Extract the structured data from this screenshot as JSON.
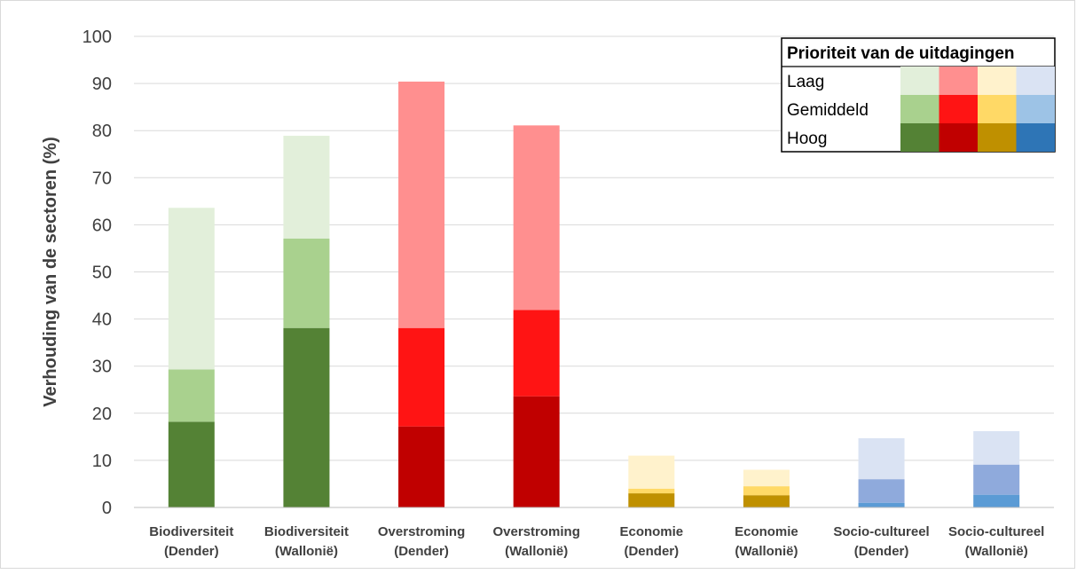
{
  "chart_data": {
    "type": "bar",
    "stacked": true,
    "ylabel": "Verhouding van de sectoren (%)",
    "xlabel": "",
    "ylim": [
      0,
      100
    ],
    "yticks": [
      0,
      10,
      20,
      30,
      40,
      50,
      60,
      70,
      80,
      90,
      100
    ],
    "grid": true,
    "categories": [
      [
        "Biodiversiteit",
        "(Dender)"
      ],
      [
        "Biodiversiteit",
        "(Wallonië)"
      ],
      [
        "Overstroming",
        "(Dender)"
      ],
      [
        "Overstroming",
        "(Wallonië)"
      ],
      [
        "Economie",
        "(Dender)"
      ],
      [
        "Economie",
        "(Wallonië)"
      ],
      [
        "Socio-cultureel",
        "(Dender)"
      ],
      [
        "Socio-cultureel",
        "(Wallonië)"
      ]
    ],
    "bar_groups": [
      0,
      0,
      1,
      1,
      2,
      2,
      3,
      3
    ],
    "series": [
      {
        "name": "Hoog",
        "values": [
          18.2,
          38.1,
          17.2,
          23.6,
          3.0,
          2.6,
          1.0,
          2.7
        ]
      },
      {
        "name": "Gemiddeld",
        "values": [
          11.1,
          19.0,
          20.9,
          18.3,
          1.0,
          1.9,
          5.0,
          6.4
        ]
      },
      {
        "name": "Laag",
        "values": [
          34.3,
          21.8,
          52.3,
          39.2,
          7.0,
          3.5,
          8.7,
          7.1
        ]
      }
    ],
    "colors": {
      "Hoog": [
        "#548235",
        "#c00000",
        "#bf9000",
        "#5b9bd5"
      ],
      "Gemiddeld": [
        "#a9d18e",
        "#ff1414",
        "#ffd966",
        "#8faadc"
      ],
      "Laag": [
        "#e2efda",
        "#ff8f8f",
        "#fff2cc",
        "#dae3f3"
      ]
    },
    "legend": {
      "title": "Prioriteit van de uitdagingen",
      "placement": "top-right",
      "rows": [
        "Laag",
        "Gemiddeld",
        "Hoog"
      ],
      "swatches": [
        [
          "#e2efda",
          "#ff8f8f",
          "#fff2cc",
          "#dae3f3"
        ],
        [
          "#a9d18e",
          "#ff1414",
          "#ffd966",
          "#9dc3e6"
        ],
        [
          "#548235",
          "#c00000",
          "#bf9000",
          "#2e75b6"
        ]
      ]
    }
  }
}
